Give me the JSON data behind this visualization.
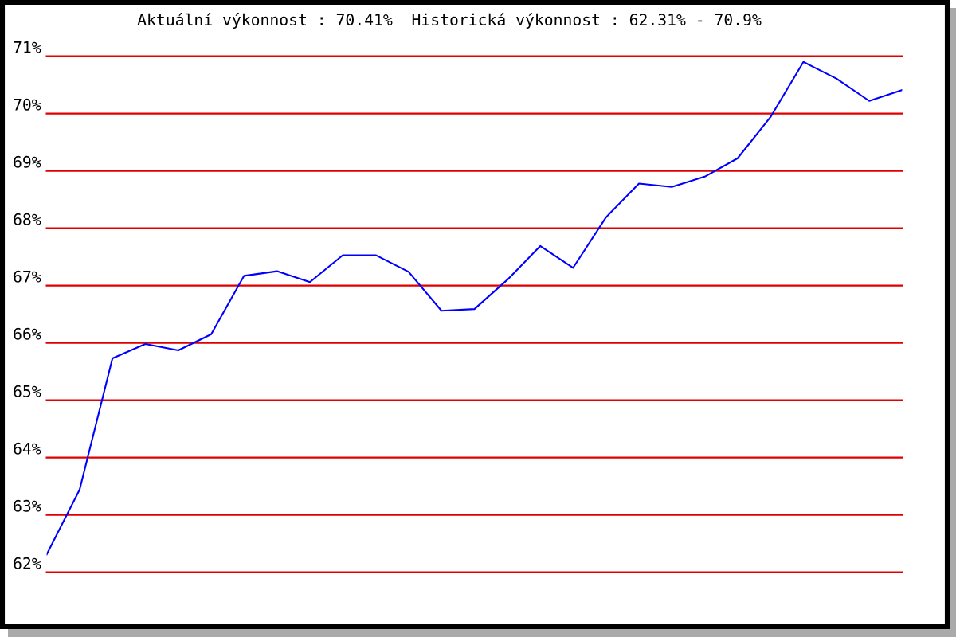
{
  "chart_data": {
    "type": "line",
    "title": "Aktuální výkonnost : 70.41%  Historická výkonnost : 62.31% - 70.9%",
    "categories": [
      null,
      null,
      null,
      null,
      null,
      null,
      null,
      null,
      null,
      null,
      null,
      null,
      null,
      null,
      null,
      null,
      null,
      null,
      null,
      null,
      null,
      null,
      null,
      null,
      null,
      null,
      null
    ],
    "series": [
      {
        "color": "#0000ff",
        "values": [
          62.31,
          63.44,
          65.73,
          65.98,
          65.87,
          66.15,
          67.17,
          67.25,
          67.06,
          67.53,
          67.53,
          67.24,
          66.56,
          66.59,
          67.1,
          67.69,
          67.31,
          68.19,
          68.78,
          68.72,
          68.9,
          69.22,
          69.94,
          70.9,
          70.61,
          70.22,
          70.41
        ]
      }
    ],
    "ylim": [
      62,
      71
    ],
    "yticks": [
      {
        "value": 62,
        "label": "62%"
      },
      {
        "value": 63,
        "label": "63%"
      },
      {
        "value": 64,
        "label": "64%"
      },
      {
        "value": 65,
        "label": "65%"
      },
      {
        "value": 66,
        "label": "66%"
      },
      {
        "value": 67,
        "label": "67%"
      },
      {
        "value": 68,
        "label": "68%"
      },
      {
        "value": 69,
        "label": "69%"
      },
      {
        "value": 70,
        "label": "70%"
      },
      {
        "value": 71,
        "label": "71%"
      }
    ],
    "grid": "y",
    "tick_labels": "y",
    "line_style": "solid"
  }
}
